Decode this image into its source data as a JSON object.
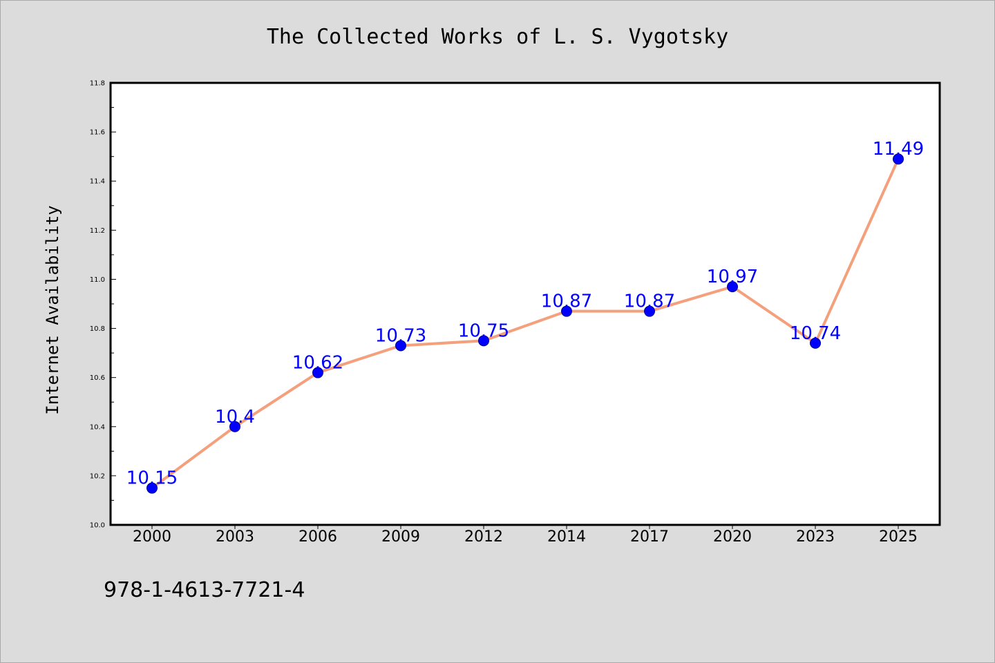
{
  "chart_data": {
    "type": "line",
    "title": "The Collected Works of L. S. Vygotsky",
    "xlabel": "",
    "ylabel": "Internet Availability",
    "categories": [
      "2000",
      "2003",
      "2006",
      "2009",
      "2012",
      "2014",
      "2017",
      "2020",
      "2023",
      "2025"
    ],
    "series": [
      {
        "values": [
          10.15,
          10.4,
          10.62,
          10.73,
          10.75,
          10.87,
          10.87,
          10.97,
          10.74,
          11.49
        ],
        "data_labels": [
          "10.15",
          "10.4",
          "10.62",
          "10.73",
          "10.75",
          "10.87",
          "10.87",
          "10.97",
          "10.74",
          "11.49"
        ],
        "line_color": "#f4a07c",
        "marker_color": "#0000ff"
      }
    ],
    "ylim": [
      10.0,
      11.8
    ],
    "yticks": [
      "10.0",
      "10.2",
      "10.4",
      "10.6",
      "10.8",
      "11.0",
      "11.2",
      "11.4",
      "11.6",
      "11.8"
    ],
    "grid": false,
    "legend": "none"
  },
  "footer": {
    "isbn": "978-1-4613-7721-4"
  },
  "colors": {
    "background": "#dcdcdc",
    "plot_background": "#ffffff",
    "label_color": "#0000ff"
  }
}
